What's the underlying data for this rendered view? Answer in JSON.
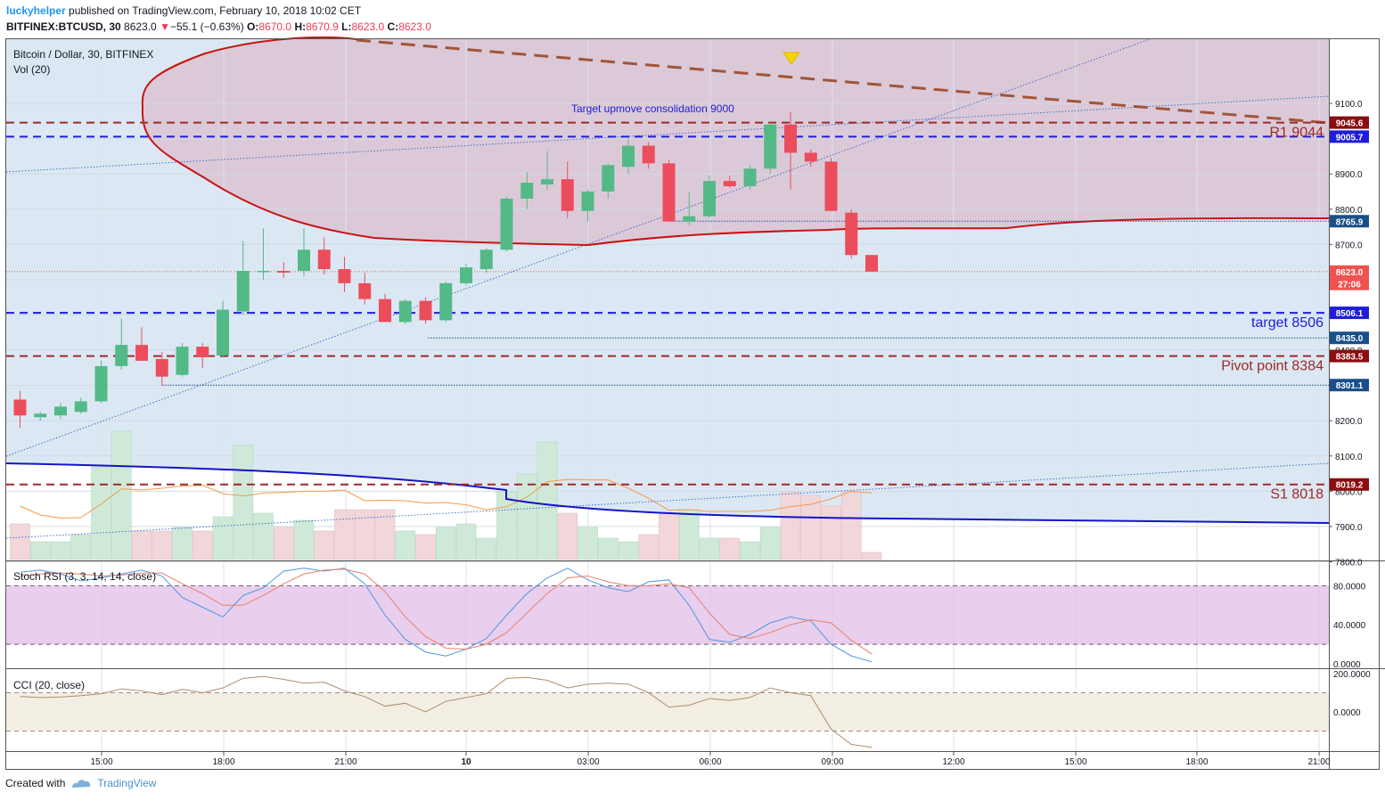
{
  "header": {
    "author": "luckyhelper",
    "published": "published on TradingView.com, February 10, 2018 10:02 CET",
    "symbol": "BITFINEX:BTCUSD, 30",
    "last": "8623.0",
    "change_arrow": "▼",
    "change": "−55.1 (−0.63%)",
    "o_label": "O:",
    "o": "8670.0",
    "h_label": "H:",
    "h": "8670.9",
    "l_label": "L:",
    "l": "8623.0",
    "c_label": "C:",
    "c": "8623.0"
  },
  "legend": {
    "title": "Bitcoin / Dollar, 30, BITFINEX",
    "vol": "Vol (20)",
    "stoch": "Stoch RSI (3, 3, 14, 14, close)",
    "cci": "CCI (20, close)"
  },
  "footer": {
    "created": "Created with",
    "brand": "TradingView"
  },
  "colors": {
    "up": "#53b987",
    "down": "#eb4d5c",
    "resistance": "#9c2a2a",
    "target": "#1e1ed9",
    "ellipse": "#c81414",
    "blue_curve": "#1414c8",
    "trend_dash": "#a05538",
    "stoch_fill": "#e1bee7",
    "cci_fill": "#f3eee4"
  },
  "chart_data": [
    {
      "type": "candlestick",
      "title": "Bitcoin / Dollar, 30, BITFINEX",
      "ylim": [
        7700,
        9200
      ],
      "y_ticks": [
        "9100.0",
        "9000.0",
        "8900.0",
        "8800.0",
        "8700.0",
        "8600.0",
        "8500.0",
        "8400.0",
        "8300.0",
        "8200.0",
        "8100.0",
        "8000.0",
        "7900.0",
        "7800.0"
      ],
      "x_ticks": [
        "15:00",
        "18:00",
        "21:00",
        "10",
        "03:00",
        "06:00",
        "09:00",
        "12:00",
        "15:00",
        "18:00",
        "21:00"
      ],
      "candles": [
        {
          "o": 8260,
          "h": 8285,
          "l": 8180,
          "c": 8215
        },
        {
          "o": 8210,
          "h": 8225,
          "l": 8200,
          "c": 8220
        },
        {
          "o": 8215,
          "h": 8250,
          "l": 8205,
          "c": 8240
        },
        {
          "o": 8225,
          "h": 8265,
          "l": 8220,
          "c": 8255
        },
        {
          "o": 8255,
          "h": 8370,
          "l": 8250,
          "c": 8355
        },
        {
          "o": 8355,
          "h": 8490,
          "l": 8345,
          "c": 8415
        },
        {
          "o": 8415,
          "h": 8465,
          "l": 8370,
          "c": 8370
        },
        {
          "o": 8375,
          "h": 8395,
          "l": 8300,
          "c": 8325
        },
        {
          "o": 8330,
          "h": 8420,
          "l": 8325,
          "c": 8410
        },
        {
          "o": 8410,
          "h": 8420,
          "l": 8350,
          "c": 8380
        },
        {
          "o": 8385,
          "h": 8540,
          "l": 8380,
          "c": 8515
        },
        {
          "o": 8510,
          "h": 8710,
          "l": 8500,
          "c": 8625
        },
        {
          "o": 8625,
          "h": 8745,
          "l": 8600,
          "c": 8625
        },
        {
          "o": 8625,
          "h": 8650,
          "l": 8605,
          "c": 8620
        },
        {
          "o": 8625,
          "h": 8745,
          "l": 8610,
          "c": 8685
        },
        {
          "o": 8685,
          "h": 8720,
          "l": 8615,
          "c": 8630
        },
        {
          "o": 8630,
          "h": 8665,
          "l": 8565,
          "c": 8590
        },
        {
          "o": 8590,
          "h": 8620,
          "l": 8530,
          "c": 8545
        },
        {
          "o": 8545,
          "h": 8560,
          "l": 8480,
          "c": 8480
        },
        {
          "o": 8480,
          "h": 8545,
          "l": 8475,
          "c": 8540
        },
        {
          "o": 8540,
          "h": 8550,
          "l": 8475,
          "c": 8485
        },
        {
          "o": 8485,
          "h": 8595,
          "l": 8480,
          "c": 8590
        },
        {
          "o": 8590,
          "h": 8645,
          "l": 8585,
          "c": 8635
        },
        {
          "o": 8630,
          "h": 8690,
          "l": 8620,
          "c": 8685
        },
        {
          "o": 8685,
          "h": 8835,
          "l": 8680,
          "c": 8830
        },
        {
          "o": 8830,
          "h": 8905,
          "l": 8800,
          "c": 8875
        },
        {
          "o": 8870,
          "h": 8965,
          "l": 8855,
          "c": 8885
        },
        {
          "o": 8885,
          "h": 8935,
          "l": 8775,
          "c": 8795
        },
        {
          "o": 8795,
          "h": 8855,
          "l": 8765,
          "c": 8850
        },
        {
          "o": 8850,
          "h": 8930,
          "l": 8830,
          "c": 8925
        },
        {
          "o": 8920,
          "h": 9000,
          "l": 8900,
          "c": 8980
        },
        {
          "o": 8980,
          "h": 8990,
          "l": 8915,
          "c": 8930
        },
        {
          "o": 8930,
          "h": 8940,
          "l": 8765,
          "c": 8765
        },
        {
          "o": 8765,
          "h": 8850,
          "l": 8755,
          "c": 8780
        },
        {
          "o": 8780,
          "h": 8895,
          "l": 8775,
          "c": 8880
        },
        {
          "o": 8880,
          "h": 8895,
          "l": 8860,
          "c": 8865
        },
        {
          "o": 8865,
          "h": 8925,
          "l": 8855,
          "c": 8915
        },
        {
          "o": 8915,
          "h": 9045,
          "l": 8900,
          "c": 9040
        },
        {
          "o": 9040,
          "h": 9075,
          "l": 8855,
          "c": 8960
        },
        {
          "o": 8960,
          "h": 8970,
          "l": 8920,
          "c": 8935
        },
        {
          "o": 8935,
          "h": 8945,
          "l": 8795,
          "c": 8795
        },
        {
          "o": 8790,
          "h": 8800,
          "l": 8660,
          "c": 8670
        },
        {
          "o": 8670,
          "h": 8670.9,
          "l": 8623,
          "c": 8623
        }
      ],
      "volume": [
        10,
        5,
        5,
        7,
        26,
        36,
        8,
        8,
        9,
        8,
        12,
        32,
        13,
        9,
        11,
        8,
        14,
        14,
        14,
        8,
        7,
        9,
        10,
        6,
        19,
        24,
        33,
        13,
        9,
        6,
        5,
        7,
        13,
        14,
        6,
        6,
        5,
        9,
        19,
        18,
        15,
        19,
        2
      ],
      "horizontal_lines": [
        {
          "value": 9045.6,
          "style": "dashed",
          "color": "#9c2a2a",
          "label": "R1 9044"
        },
        {
          "value": 9005.7,
          "style": "dashed",
          "color": "#1e1ed9",
          "label": "Target upmove consolidation 9000"
        },
        {
          "value": 8506.1,
          "style": "dashed",
          "color": "#1e1ed9",
          "label": "target 8506"
        },
        {
          "value": 8383.5,
          "style": "dashed",
          "color": "#9c2a2a",
          "label": "Pivot point 8384"
        },
        {
          "value": 8019.2,
          "style": "dashed",
          "color": "#9c2a2a",
          "label": "S1 8018"
        },
        {
          "value": 8765.9,
          "style": "dotted",
          "color": "#1e4e8c",
          "label": ""
        },
        {
          "value": 8435.0,
          "style": "dotted",
          "color": "#1e4e8c",
          "label": ""
        },
        {
          "value": 8301.1,
          "style": "dotted",
          "color": "#1e4e8c",
          "label": ""
        }
      ],
      "price_tags": [
        "9045.6",
        "9005.7",
        "8765.9",
        "8623.0",
        "27:06",
        "8506.1",
        "8435.0",
        "8383.5",
        "8301.1",
        "8019.2"
      ]
    },
    {
      "type": "line",
      "title": "Stoch RSI (3, 3, 14, 14, close)",
      "ylim": [
        0,
        100
      ],
      "y_ticks": [
        "80.0000",
        "40.0000",
        "0.0000"
      ],
      "bands": [
        20,
        80
      ],
      "series": [
        {
          "name": "K",
          "color": "#4f97e0",
          "values": [
            94,
            96,
            92,
            85,
            88,
            92,
            96,
            90,
            68,
            58,
            48,
            70,
            78,
            95,
            98,
            95,
            98,
            82,
            50,
            25,
            12,
            8,
            15,
            26,
            50,
            72,
            88,
            98,
            86,
            78,
            74,
            84,
            86,
            60,
            25,
            22,
            30,
            42,
            48,
            44,
            20,
            8,
            2
          ]
        },
        {
          "name": "D",
          "color": "#e8806e",
          "values": [
            90,
            92,
            93,
            92,
            90,
            91,
            93,
            93,
            82,
            72,
            60,
            60,
            70,
            82,
            92,
            96,
            97,
            92,
            74,
            48,
            28,
            16,
            15,
            20,
            32,
            52,
            72,
            88,
            90,
            84,
            80,
            80,
            82,
            78,
            52,
            30,
            26,
            32,
            40,
            45,
            42,
            24,
            10
          ]
        }
      ]
    },
    {
      "type": "line",
      "title": "CCI (20, close)",
      "ylim": [
        -200,
        200
      ],
      "y_ticks": [
        "200.0000",
        "0.0000"
      ],
      "bands": [
        -100,
        100
      ],
      "series": [
        {
          "name": "CCI",
          "color": "#b08d6a",
          "values": [
            80,
            75,
            78,
            85,
            95,
            120,
            110,
            90,
            118,
            100,
            125,
            175,
            185,
            170,
            150,
            155,
            110,
            80,
            30,
            45,
            0,
            55,
            75,
            95,
            175,
            180,
            165,
            125,
            145,
            150,
            145,
            100,
            25,
            35,
            70,
            60,
            75,
            125,
            100,
            85,
            -90,
            -170,
            -185
          ]
        }
      ]
    }
  ]
}
